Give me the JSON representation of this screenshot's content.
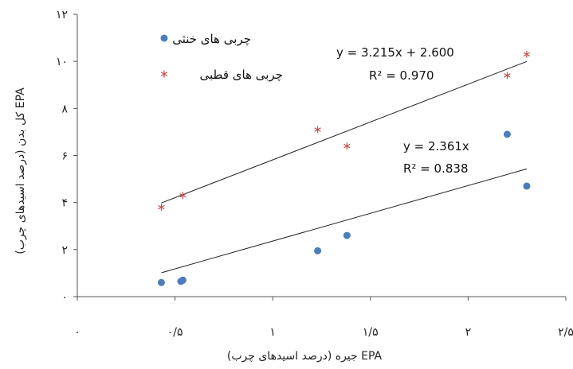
{
  "chart_data": {
    "type": "scatter",
    "title": "",
    "xlabel": "EPA جیره (درصد اسیدهای چرب)",
    "ylabel": "EPA کل بدن (درصد اسیدهای چرب)",
    "xlim": [
      0,
      2.5
    ],
    "ylim": [
      0,
      12
    ],
    "x_ticks": [
      0,
      0.5,
      1,
      1.5,
      2,
      2.5
    ],
    "x_tick_labels": [
      "۰",
      "۰/۵",
      "۱",
      "۱/۵",
      "۲",
      "۲/۵"
    ],
    "y_ticks": [
      0,
      2,
      4,
      6,
      8,
      10,
      12
    ],
    "y_tick_labels": [
      "۰",
      "۲",
      "۴",
      "۶",
      "۸",
      "۱۰",
      "۱۲"
    ],
    "grid": false,
    "legend_position": "top-left",
    "series": [
      {
        "name": "چربی های خنثی",
        "marker": "circle",
        "color": "#4a7ebb",
        "x": [
          0.43,
          0.53,
          0.54,
          1.23,
          1.38,
          2.2,
          2.3
        ],
        "y": [
          0.6,
          0.65,
          0.7,
          1.95,
          2.6,
          6.9,
          4.7
        ],
        "trendline": {
          "slope": 2.361,
          "intercept": 0,
          "x_range": [
            0.43,
            2.3
          ],
          "equation": "y = 2.361x",
          "r2": "R² = 0.838"
        }
      },
      {
        "name": "چربی های قطبی",
        "marker": "asterisk",
        "color": "#c0504d",
        "x": [
          0.43,
          0.54,
          1.23,
          1.38,
          2.2,
          2.3
        ],
        "y": [
          3.8,
          4.3,
          7.1,
          6.4,
          9.4,
          10.3
        ],
        "trendline": {
          "slope": 3.215,
          "intercept": 2.6,
          "x_range": [
            0.43,
            2.3
          ],
          "equation": "y = 3.215x + 2.600",
          "r2": "R² = 0.970"
        }
      }
    ]
  }
}
